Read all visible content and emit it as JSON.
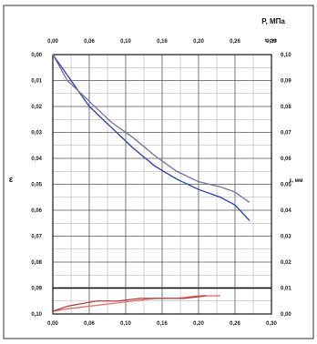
{
  "chart_data": {
    "type": "line",
    "top_axis": {
      "label": "P, МПа",
      "sub_label": "t, сут",
      "ticks": [
        "0,00",
        "0,06",
        "0,10",
        "0,16",
        "0,20",
        "0,26",
        "0,30"
      ]
    },
    "bottom_axis": {
      "ticks": [
        "0,00",
        "0,06",
        "0,10",
        "0,16",
        "0,20",
        "0,26",
        "0,30"
      ]
    },
    "left_axis": {
      "label": "ε",
      "ticks": [
        "0,00",
        "0,01",
        "0,02",
        "0,03",
        "0,04",
        "0,05",
        "0,06",
        "0,07",
        "0,08",
        "0,09",
        "0,10"
      ],
      "ylim": [
        0,
        0.1
      ]
    },
    "right_axis": {
      "label": "ε, мм",
      "ticks": [
        "0,10",
        "0,09",
        "0,08",
        "0,07",
        "0,06",
        "0,05",
        "0,04",
        "0,03",
        "0,02",
        "0,01",
        "0,00"
      ]
    },
    "xlim": [
      0,
      0.3
    ],
    "series": [
      {
        "color": "#2c3ea8",
        "x": [
          0.0,
          0.02,
          0.05,
          0.08,
          0.11,
          0.14,
          0.17,
          0.2,
          0.23,
          0.25,
          0.27
        ],
        "y": [
          0.0,
          0.008,
          0.02,
          0.028,
          0.036,
          0.043,
          0.048,
          0.052,
          0.055,
          0.058,
          0.064
        ]
      },
      {
        "color": "#7a6f9c",
        "x": [
          0.0,
          0.02,
          0.05,
          0.08,
          0.11,
          0.14,
          0.17,
          0.2,
          0.23,
          0.25,
          0.27
        ],
        "y": [
          0.0,
          0.01,
          0.018,
          0.026,
          0.032,
          0.039,
          0.045,
          0.049,
          0.051,
          0.053,
          0.057
        ]
      },
      {
        "color": "#e07070",
        "x": [
          0.0,
          0.02,
          0.05,
          0.08,
          0.11,
          0.14,
          0.17,
          0.2,
          0.23
        ],
        "y": [
          0.099,
          0.098,
          0.097,
          0.096,
          0.095,
          0.094,
          0.094,
          0.093,
          0.093
        ]
      },
      {
        "color": "#b03a3a",
        "x": [
          0.0,
          0.02,
          0.04,
          0.06,
          0.09,
          0.12,
          0.15,
          0.18,
          0.21
        ],
        "y": [
          0.099,
          0.097,
          0.096,
          0.095,
          0.095,
          0.094,
          0.094,
          0.094,
          0.093
        ]
      }
    ],
    "reference_line_y": 0.09,
    "grid": true
  }
}
